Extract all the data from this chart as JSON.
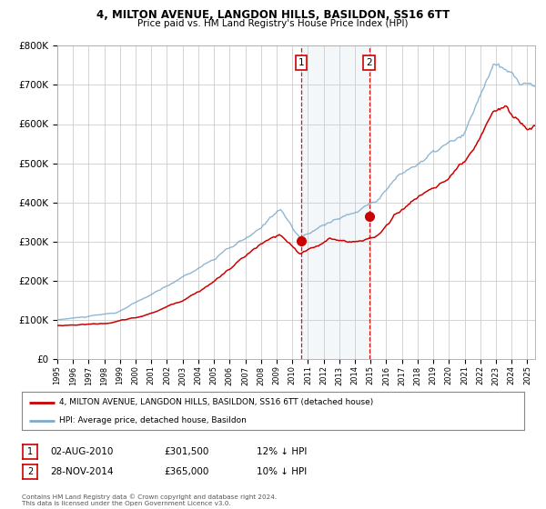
{
  "title1": "4, MILTON AVENUE, LANGDON HILLS, BASILDON, SS16 6TT",
  "title2": "Price paid vs. HM Land Registry's House Price Index (HPI)",
  "legend_red": "4, MILTON AVENUE, LANGDON HILLS, BASILDON, SS16 6TT (detached house)",
  "legend_blue": "HPI: Average price, detached house, Basildon",
  "annotation1": {
    "label": "1",
    "date": "02-AUG-2010",
    "price": "£301,500",
    "pct": "12% ↓ HPI"
  },
  "annotation2": {
    "label": "2",
    "date": "28-NOV-2014",
    "price": "£365,000",
    "pct": "10% ↓ HPI"
  },
  "footer": "Contains HM Land Registry data © Crown copyright and database right 2024.\nThis data is licensed under the Open Government Licence v3.0.",
  "sale1_x": 2010.58,
  "sale1_y": 301500,
  "sale2_x": 2014.91,
  "sale2_y": 365000,
  "ylim": [
    0,
    800000
  ],
  "xlim": [
    1995.0,
    2025.5
  ],
  "yticks": [
    0,
    100000,
    200000,
    300000,
    400000,
    500000,
    600000,
    700000,
    800000
  ],
  "background_color": "#ffffff",
  "grid_color": "#cccccc",
  "red_color": "#cc0000",
  "blue_color": "#7aabcc"
}
